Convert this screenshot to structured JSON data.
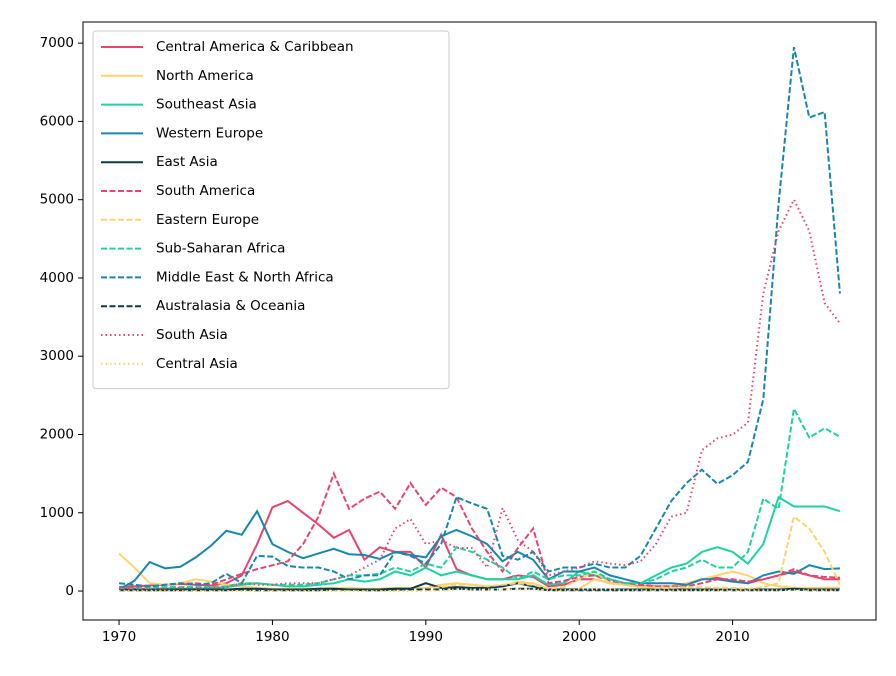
{
  "chart_data": {
    "type": "line",
    "x": [
      1970,
      1971,
      1972,
      1973,
      1974,
      1975,
      1976,
      1977,
      1978,
      1979,
      1980,
      1981,
      1982,
      1983,
      1984,
      1985,
      1986,
      1987,
      1988,
      1989,
      1990,
      1991,
      1992,
      1993,
      1994,
      1995,
      1996,
      1997,
      1998,
      1999,
      2000,
      2001,
      2002,
      2003,
      2004,
      2005,
      2006,
      2007,
      2008,
      2009,
      2010,
      2011,
      2012,
      2013,
      2014,
      2015,
      2016,
      2017
    ],
    "xlim": [
      1967.65,
      2019.35
    ],
    "xticks": [
      1970,
      1980,
      1990,
      2000,
      2010
    ],
    "ylim": [
      -370,
      7270
    ],
    "yticks": [
      0,
      1000,
      2000,
      3000,
      4000,
      5000,
      6000,
      7000
    ],
    "legend": "upper left",
    "series": [
      {
        "name": "Central America & Caribbean",
        "color": "#e8446e",
        "linestyle": "solid",
        "values": [
          50,
          60,
          70,
          80,
          90,
          80,
          70,
          100,
          200,
          600,
          1070,
          1150,
          1000,
          850,
          680,
          780,
          400,
          560,
          500,
          500,
          300,
          720,
          280,
          200,
          150,
          150,
          200,
          180,
          60,
          80,
          150,
          150,
          100,
          80,
          60,
          60,
          60,
          80,
          150,
          170,
          130,
          100,
          150,
          200,
          250,
          200,
          150,
          150
        ]
      },
      {
        "name": "North America",
        "color": "#fed36f",
        "linestyle": "solid",
        "values": [
          480,
          300,
          100,
          80,
          100,
          150,
          120,
          80,
          60,
          40,
          30,
          30,
          30,
          30,
          40,
          40,
          30,
          30,
          40,
          40,
          40,
          80,
          100,
          80,
          60,
          60,
          120,
          100,
          30,
          20,
          30,
          150,
          100,
          80,
          50,
          50,
          60,
          100,
          150,
          200,
          250,
          200,
          100,
          60,
          40,
          40,
          40,
          40
        ]
      },
      {
        "name": "Southeast Asia",
        "color": "#1dd3a0",
        "linestyle": "solid",
        "values": [
          30,
          30,
          30,
          30,
          30,
          30,
          40,
          50,
          80,
          100,
          80,
          60,
          60,
          80,
          100,
          150,
          120,
          150,
          250,
          200,
          300,
          200,
          250,
          200,
          150,
          150,
          150,
          200,
          80,
          100,
          250,
          200,
          150,
          100,
          100,
          200,
          300,
          350,
          500,
          560,
          500,
          350,
          600,
          1200,
          1080,
          1080,
          1080,
          1020
        ]
      },
      {
        "name": "Western Europe",
        "color": "#1787ab",
        "linestyle": "solid",
        "values": [
          20,
          130,
          370,
          290,
          310,
          430,
          580,
          770,
          720,
          1020,
          600,
          500,
          420,
          480,
          540,
          470,
          460,
          410,
          500,
          460,
          430,
          700,
          780,
          700,
          600,
          380,
          500,
          400,
          150,
          250,
          250,
          300,
          200,
          150,
          100,
          100,
          100,
          80,
          150,
          150,
          120,
          100,
          200,
          250,
          220,
          330,
          280,
          290
        ]
      },
      {
        "name": "East Asia",
        "color": "#0b3c4a",
        "linestyle": "solid",
        "values": [
          20,
          20,
          20,
          20,
          20,
          20,
          20,
          20,
          30,
          30,
          20,
          20,
          20,
          30,
          30,
          20,
          20,
          20,
          30,
          30,
          100,
          40,
          50,
          40,
          40,
          60,
          100,
          60,
          20,
          20,
          20,
          20,
          20,
          20,
          20,
          20,
          20,
          20,
          20,
          20,
          20,
          20,
          20,
          20,
          30,
          20,
          20,
          20
        ]
      },
      {
        "name": "South America",
        "color": "#e8446e",
        "linestyle": "dashed",
        "values": [
          20,
          40,
          50,
          80,
          90,
          100,
          80,
          150,
          220,
          280,
          330,
          380,
          600,
          950,
          1500,
          1050,
          1180,
          1270,
          1050,
          1380,
          1100,
          1320,
          1200,
          800,
          500,
          250,
          550,
          800,
          100,
          130,
          180,
          200,
          130,
          100,
          80,
          60,
          60,
          60,
          100,
          150,
          150,
          120,
          150,
          200,
          280,
          200,
          180,
          170
        ]
      },
      {
        "name": "Eastern Europe",
        "color": "#fed36f",
        "linestyle": "dashed",
        "values": [
          10,
          10,
          10,
          10,
          10,
          10,
          10,
          10,
          10,
          10,
          10,
          10,
          10,
          10,
          10,
          10,
          10,
          10,
          10,
          20,
          30,
          50,
          80,
          80,
          60,
          80,
          100,
          80,
          30,
          50,
          150,
          250,
          100,
          80,
          50,
          40,
          40,
          50,
          50,
          40,
          40,
          30,
          50,
          100,
          950,
          800,
          500,
          80
        ]
      },
      {
        "name": "Sub-Saharan Africa",
        "color": "#1dd3a0",
        "linestyle": "dashed",
        "values": [
          30,
          30,
          40,
          50,
          50,
          50,
          50,
          60,
          100,
          100,
          80,
          80,
          80,
          100,
          150,
          200,
          200,
          220,
          300,
          250,
          350,
          300,
          560,
          500,
          400,
          300,
          150,
          250,
          150,
          200,
          200,
          250,
          150,
          100,
          100,
          150,
          250,
          300,
          400,
          300,
          300,
          500,
          1180,
          1050,
          2330,
          1960,
          2080,
          1970
        ]
      },
      {
        "name": "Middle East & North Africa",
        "color": "#1787ab",
        "linestyle": "dashed",
        "values": [
          100,
          80,
          60,
          80,
          100,
          80,
          100,
          220,
          100,
          450,
          440,
          320,
          300,
          300,
          250,
          150,
          200,
          200,
          500,
          450,
          350,
          600,
          1200,
          1120,
          1050,
          450,
          400,
          500,
          250,
          300,
          300,
          350,
          300,
          300,
          450,
          800,
          1150,
          1380,
          1550,
          1370,
          1480,
          1650,
          2450,
          4950,
          6950,
          6050,
          6120,
          3800
        ]
      },
      {
        "name": "Australasia & Oceania",
        "color": "#0b3c4a",
        "linestyle": "dashed",
        "values": [
          10,
          10,
          10,
          10,
          10,
          10,
          10,
          10,
          20,
          10,
          10,
          10,
          10,
          10,
          20,
          20,
          10,
          10,
          20,
          20,
          20,
          20,
          30,
          20,
          20,
          20,
          30,
          30,
          10,
          10,
          10,
          10,
          10,
          10,
          10,
          10,
          10,
          10,
          10,
          10,
          10,
          10,
          10,
          10,
          20,
          10,
          10,
          10
        ]
      },
      {
        "name": "South Asia",
        "color": "#e8446e",
        "linestyle": "dotted",
        "values": [
          30,
          30,
          30,
          30,
          40,
          40,
          40,
          50,
          100,
          80,
          80,
          100,
          100,
          100,
          150,
          200,
          300,
          400,
          800,
          920,
          600,
          650,
          550,
          550,
          300,
          1060,
          650,
          500,
          200,
          250,
          300,
          380,
          350,
          330,
          380,
          600,
          950,
          1000,
          1800,
          1950,
          2000,
          2150,
          3800,
          4600,
          5000,
          4600,
          3680,
          3420
        ]
      },
      {
        "name": "Central Asia",
        "color": "#fed36f",
        "linestyle": "dotted",
        "values": [
          0,
          0,
          0,
          0,
          0,
          0,
          0,
          0,
          0,
          0,
          0,
          0,
          0,
          0,
          0,
          0,
          0,
          0,
          0,
          0,
          0,
          10,
          20,
          20,
          20,
          20,
          20,
          20,
          10,
          10,
          20,
          20,
          20,
          10,
          10,
          10,
          10,
          10,
          10,
          10,
          10,
          10,
          10,
          10,
          10,
          10,
          10,
          10
        ]
      }
    ]
  }
}
